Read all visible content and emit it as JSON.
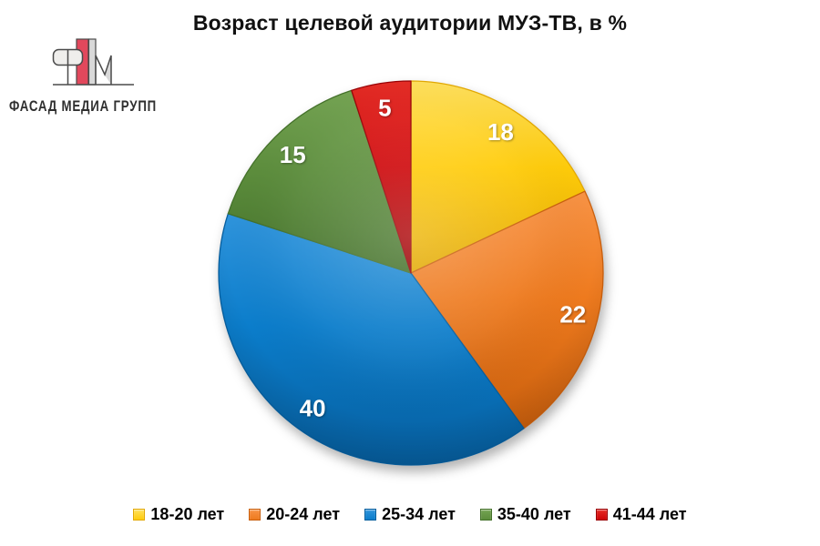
{
  "page": {
    "background": "#FFFFFF"
  },
  "header": {
    "title": "Возраст целевой аудитории МУЗ-ТВ, в %"
  },
  "logo": {
    "text": "ФАСАД МЕДИА ГРУПП",
    "colors": {
      "outline": "#4A4A4A",
      "red_bar": "#E2485C",
      "gray_bar": "#D9D9D9",
      "text": "#2F2F2F"
    }
  },
  "chart_data": {
    "type": "pie",
    "title": "Возраст целевой аудитории МУЗ-ТВ, в %",
    "categories": [
      "18-20 лет",
      "20-24 лет",
      "25-34 лет",
      "35-40 лет",
      "41-44 лет"
    ],
    "values": [
      18,
      22,
      40,
      15,
      5
    ],
    "data_labels": [
      "18",
      "22",
      "40",
      "15",
      "5"
    ],
    "unit": "%",
    "start_angle_deg": 0,
    "direction": "clockwise",
    "legend_position": "bottom",
    "label_color": "#FFFFFF",
    "slice_colors": [
      {
        "name": "yellow",
        "base": "#FFCC0A",
        "light": "#FFE05C",
        "dark": "#E2A802"
      },
      {
        "name": "orange",
        "base": "#EE7A1E",
        "light": "#F89345",
        "dark": "#C95F0D"
      },
      {
        "name": "blue",
        "base": "#0B7DCB",
        "light": "#2F94DC",
        "dark": "#065E9E"
      },
      {
        "name": "green",
        "base": "#5C8D3C",
        "light": "#74A452",
        "dark": "#44712A"
      },
      {
        "name": "red",
        "base": "#CE0508",
        "light": "#E62B24",
        "dark": "#990205"
      }
    ]
  }
}
